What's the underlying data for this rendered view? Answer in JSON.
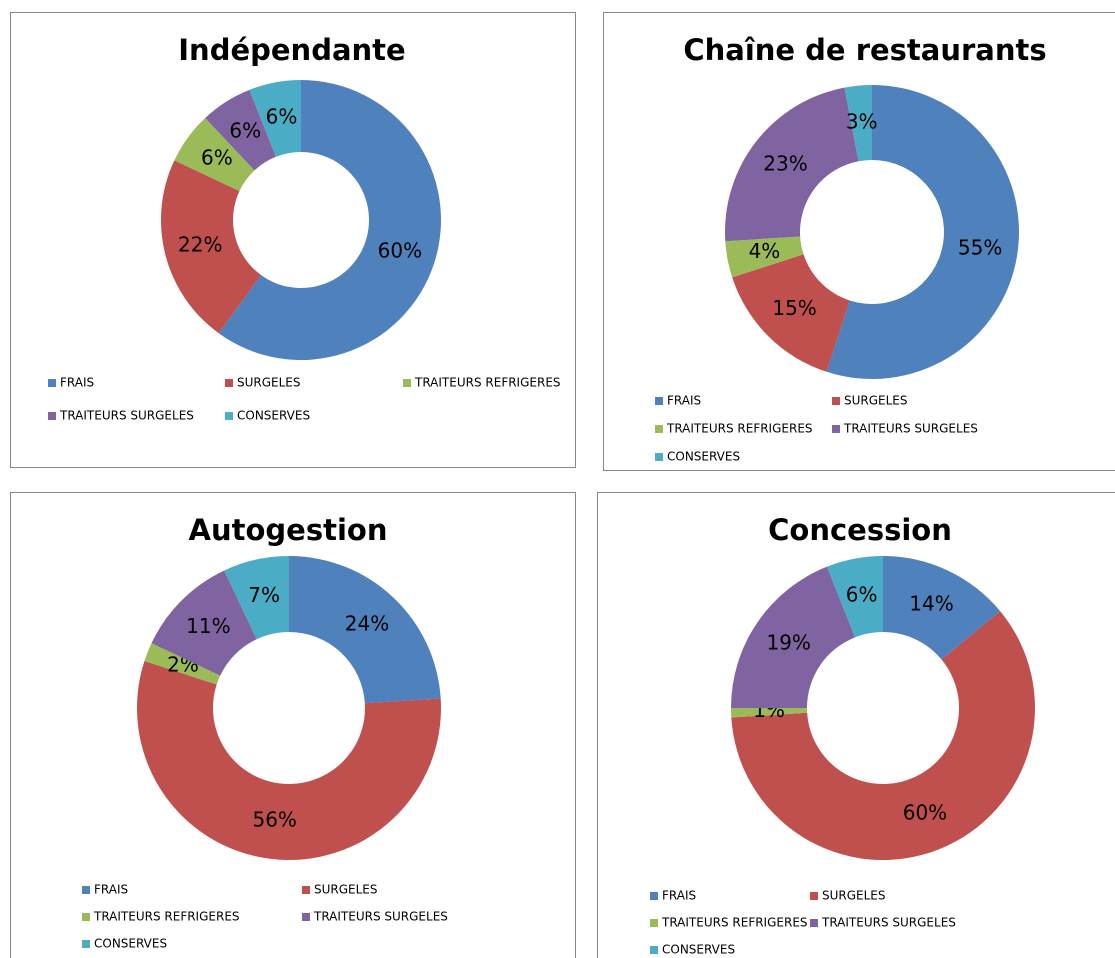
{
  "chart_data": [
    {
      "type": "donut",
      "title": "Indépendante",
      "categories": [
        "FRAIS",
        "SURGELES",
        "TRAITEURS REFRIGERES",
        "TRAITEURS SURGELES",
        "CONSERVES"
      ],
      "values": [
        60,
        22,
        6,
        6,
        6
      ],
      "value_labels": [
        "60%",
        "22%",
        "6%",
        "6%",
        "6%"
      ],
      "colors": [
        "#4f81bd",
        "#c0504d",
        "#9bbb59",
        "#8064a2",
        "#4bacc6"
      ],
      "legend": "bottom"
    },
    {
      "type": "donut",
      "title": "Chaîne de restaurants",
      "categories": [
        "FRAIS",
        "SURGELES",
        "TRAITEURS REFRIGERES",
        "TRAITEURS SURGELES",
        "CONSERVES"
      ],
      "values": [
        55,
        15,
        4,
        23,
        3
      ],
      "value_labels": [
        "55%",
        "15%",
        "4%",
        "23%",
        "3%"
      ],
      "colors": [
        "#4f81bd",
        "#c0504d",
        "#9bbb59",
        "#8064a2",
        "#4bacc6"
      ],
      "legend": "bottom"
    },
    {
      "type": "donut",
      "title": "Autogestion",
      "categories": [
        "FRAIS",
        "SURGELES",
        "TRAITEURS REFRIGERES",
        "TRAITEURS SURGELES",
        "CONSERVES"
      ],
      "values": [
        24,
        56,
        2,
        11,
        7
      ],
      "value_labels": [
        "24%",
        "56%",
        "2%",
        "11%",
        "7%"
      ],
      "colors": [
        "#4f81bd",
        "#c0504d",
        "#9bbb59",
        "#8064a2",
        "#4bacc6"
      ],
      "legend": "bottom"
    },
    {
      "type": "donut",
      "title": "Concession",
      "categories": [
        "FRAIS",
        "SURGELES",
        "TRAITEURS REFRIGERES",
        "TRAITEURS SURGELES",
        "CONSERVES"
      ],
      "values": [
        14,
        60,
        1,
        19,
        6
      ],
      "value_labels": [
        "14%",
        "60%",
        "1%",
        "19%",
        "6%"
      ],
      "colors": [
        "#4f81bd",
        "#c0504d",
        "#9bbb59",
        "#8064a2",
        "#4bacc6"
      ],
      "legend": "bottom"
    }
  ]
}
